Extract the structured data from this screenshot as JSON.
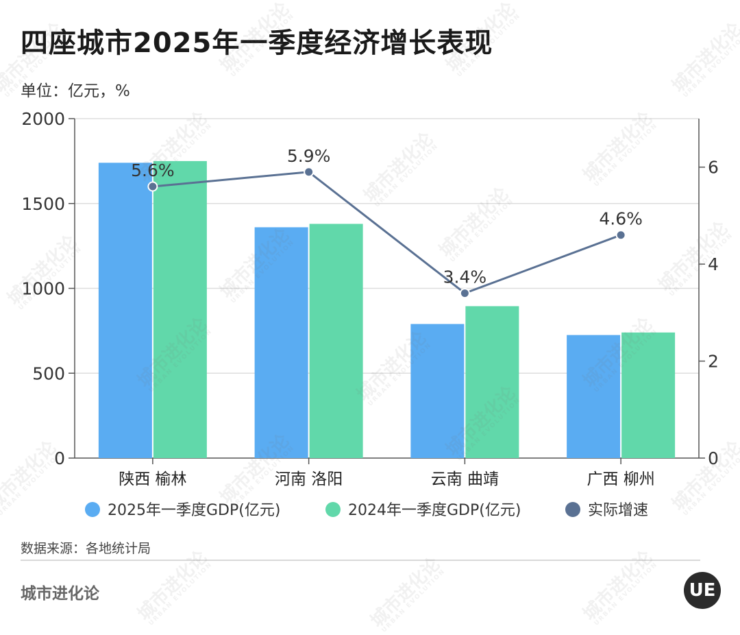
{
  "title": "四座城市2025年一季度经济增长表现",
  "unit_label": "单位：亿元，%",
  "source_label": "数据来源：各地统计局",
  "brand": "城市进化论",
  "logo_text": "UE",
  "watermark": {
    "main": "城市进化论",
    "sub": "URBAN EVOLUTION"
  },
  "colors": {
    "gdp_2025": "#5aacf2",
    "gdp_2024": "#61d8aa",
    "growth": "#5a7193",
    "grid": "#dddddd",
    "axis": "#555555"
  },
  "chart_data": {
    "type": "bar",
    "categories": [
      "陕西 榆林",
      "河南 洛阳",
      "云南 曲靖",
      "广西 柳州"
    ],
    "series": [
      {
        "name": "2025年一季度GDP(亿元)",
        "type": "bar",
        "axis": "left",
        "color": "#5aacf2",
        "values": [
          1740,
          1360,
          790,
          725
        ]
      },
      {
        "name": "2024年一季度GDP(亿元)",
        "type": "bar",
        "axis": "left",
        "color": "#61d8aa",
        "values": [
          1750,
          1380,
          895,
          740
        ]
      },
      {
        "name": "实际增速",
        "type": "line",
        "axis": "right",
        "color": "#5a7193",
        "values": [
          5.6,
          5.9,
          3.4,
          4.6
        ],
        "labels": [
          "5.6%",
          "5.9%",
          "3.4%",
          "4.6%"
        ]
      }
    ],
    "left_axis": {
      "ylim": [
        0,
        2000
      ],
      "ticks": [
        0,
        500,
        1000,
        1500,
        2000
      ]
    },
    "right_axis": {
      "ylim": [
        0,
        7
      ],
      "ticks": [
        0,
        2,
        4,
        6
      ]
    },
    "grid": true,
    "legend_position": "bottom"
  }
}
